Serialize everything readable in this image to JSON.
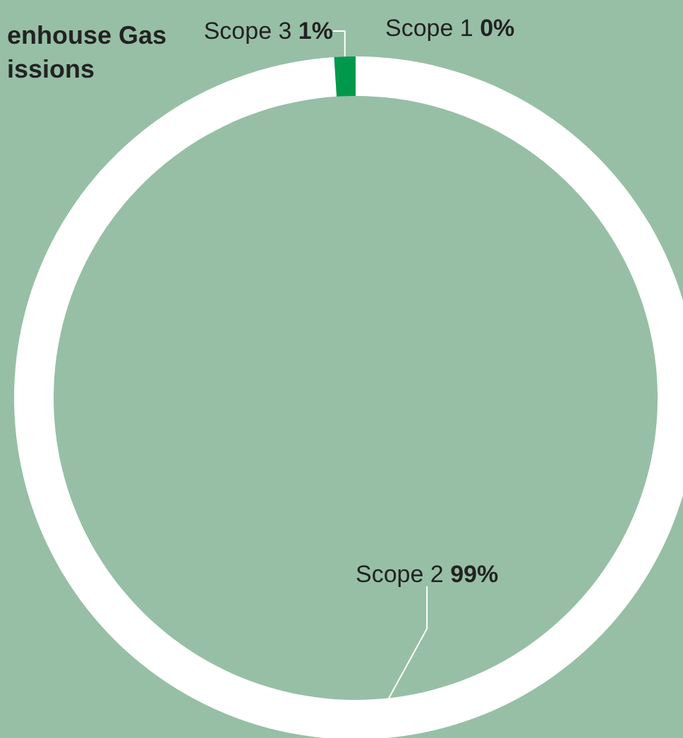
{
  "chart_data": {
    "type": "donut",
    "title": "enhouse Gas\nissions",
    "categories": [
      "Scope 1",
      "Scope 2",
      "Scope 3"
    ],
    "values": [
      0,
      99,
      1
    ],
    "colors": [
      "#4cb964",
      "#ffffff",
      "#00994c"
    ],
    "value_labels": [
      "0%",
      "99%",
      "1%"
    ],
    "legend": false
  }
}
